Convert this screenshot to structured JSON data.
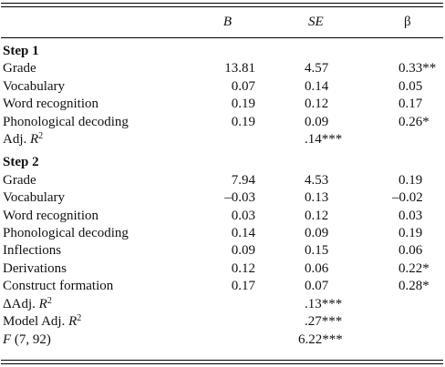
{
  "columns": {
    "b": "B",
    "se": "SE",
    "beta": "β"
  },
  "step1": {
    "heading": "Step 1",
    "rows": [
      {
        "label": "Grade",
        "b": "13.81",
        "se": "4.57",
        "beta": "0.33**"
      },
      {
        "label": "Vocabulary",
        "b": "0.07",
        "se": "0.14",
        "beta": "0.05"
      },
      {
        "label": "Word recognition",
        "b": "0.19",
        "se": "0.12",
        "beta": "0.17"
      },
      {
        "label": "Phonological decoding",
        "b": "0.19",
        "se": "0.09",
        "beta": "0.26*"
      }
    ],
    "adj_label": "Adj. ",
    "adj_r": "R",
    "adj_sup": "2",
    "adj_value": ".14***"
  },
  "step2": {
    "heading": "Step 2",
    "rows": [
      {
        "label": "Grade",
        "b": "7.94",
        "se": "4.53",
        "beta": "0.19"
      },
      {
        "label": "Vocabulary",
        "b": "–0.03",
        "se": "0.13",
        "beta": "–0.02"
      },
      {
        "label": "Word recognition",
        "b": "0.03",
        "se": "0.12",
        "beta": "0.03"
      },
      {
        "label": "Phonological decoding",
        "b": "0.14",
        "se": "0.09",
        "beta": "0.19"
      },
      {
        "label": "Inflections",
        "b": "0.09",
        "se": "0.15",
        "beta": "0.06"
      },
      {
        "label": "Derivations",
        "b": "0.12",
        "se": "0.06",
        "beta": "0.22*"
      },
      {
        "label": "Construct formation",
        "b": "0.17",
        "se": "0.07",
        "beta": "0.28*"
      }
    ],
    "delta_label": "ΔAdj. ",
    "delta_value": ".13***",
    "model_label": "Model Adj. ",
    "model_value": ".27***",
    "f_label": "F",
    "f_df": " (7, 92)",
    "f_value": "6.22***",
    "r": "R",
    "sup": "2"
  }
}
